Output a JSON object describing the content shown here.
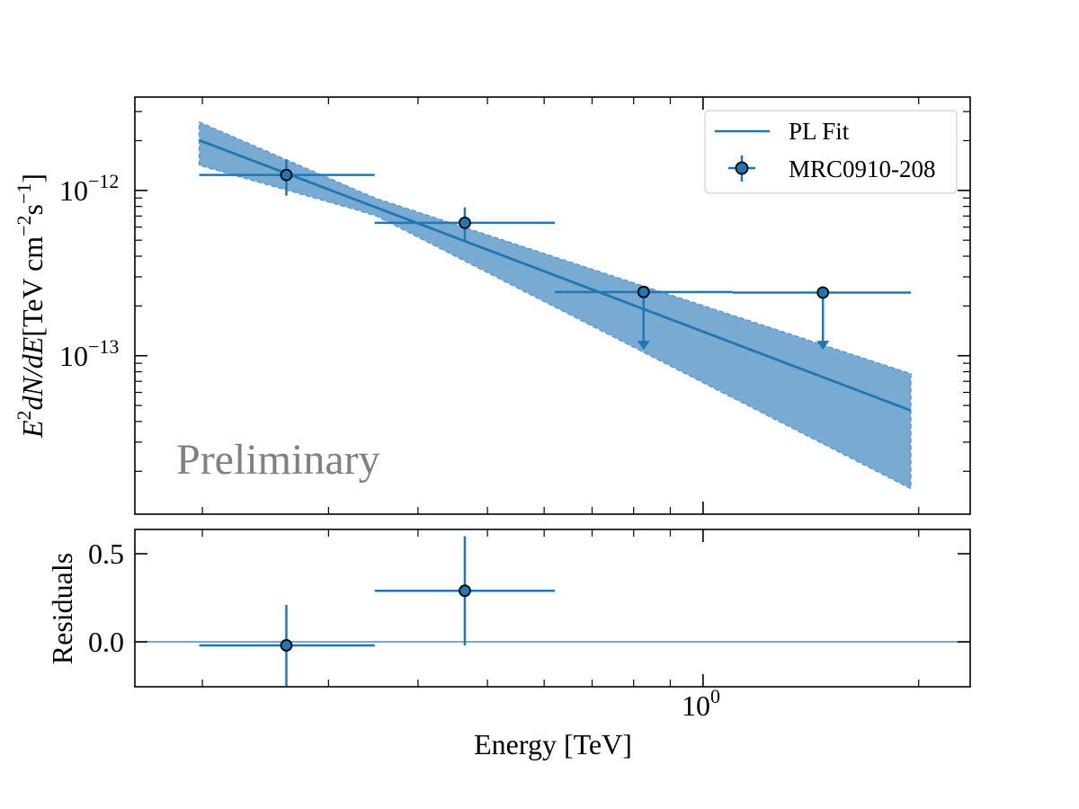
{
  "colors": {
    "series": "#1f77b4",
    "band": "#79abd2",
    "band_edge": "#5b9bd0",
    "watermark": "#808080",
    "axes": "#000000"
  },
  "chart_data": [
    {
      "type": "scatter",
      "panel": "spectrum",
      "title": "",
      "xlabel": "Energy [TeV]",
      "ylabel": "E^2 dN/dE [TeV cm^-2 s^-1]",
      "ylabel_parts": {
        "main": "E",
        "sup1": "2",
        "mid": "dN/dE [TeV cm",
        "sup2": "−2",
        "s": "s",
        "sup3": "−1",
        "end": "]"
      },
      "xscale": "log",
      "yscale": "log",
      "xlim": [
        0.161,
        2.36
      ],
      "ylim": [
        1.1e-14,
        3.67e-12
      ],
      "yticks": [
        {
          "value": 1e-12,
          "base": "10",
          "exp": "−12"
        },
        {
          "value": 1e-13,
          "base": "10",
          "exp": "−13"
        }
      ],
      "annotation": "Preliminary",
      "legend": {
        "position": "top-right",
        "entries": [
          {
            "label": "PL Fit",
            "kind": "line"
          },
          {
            "label": "MRC0910-208",
            "kind": "errorbar-marker"
          }
        ]
      },
      "fit_line": {
        "name": "PL Fit",
        "x": [
          0.198,
          1.95
        ],
        "y": [
          2.01e-12,
          4.66e-14
        ]
      },
      "fit_band": {
        "x": [
          0.198,
          0.348,
          1.95
        ],
        "upper": [
          2.59e-12,
          9e-13,
          7.78e-14
        ],
        "lower": [
          1.42e-12,
          7.1e-13,
          1.57e-14
        ]
      },
      "series": [
        {
          "name": "MRC0910-208",
          "points": [
            {
              "x": 0.262,
              "xlo": 0.198,
              "xhi": 0.348,
              "y": 1.24e-12,
              "ylo": 9.3e-13,
              "yhi": 1.54e-12,
              "ul": false
            },
            {
              "x": 0.465,
              "xlo": 0.348,
              "xhi": 0.621,
              "y": 6.37e-13,
              "ylo": 4.9e-13,
              "yhi": 7.9e-13,
              "ul": false
            },
            {
              "x": 0.826,
              "xlo": 0.621,
              "xhi": 1.1,
              "y": 2.43e-13,
              "ul": true,
              "arrow_to": 1.1e-13
            },
            {
              "x": 1.47,
              "xlo": 1.1,
              "xhi": 1.95,
              "y": 2.41e-13,
              "ul": true,
              "arrow_to": 1.1e-13
            }
          ]
        }
      ]
    },
    {
      "type": "scatter",
      "panel": "residuals",
      "xlabel": "Energy [TeV]",
      "ylabel": "Residuals",
      "xscale": "log",
      "xlim": [
        0.161,
        2.36
      ],
      "ylim": [
        -0.255,
        0.638
      ],
      "xticks": [
        {
          "value": 1,
          "base": "10",
          "exp": "0"
        }
      ],
      "yticks": [
        {
          "value": 0.5,
          "label": "0.5"
        },
        {
          "value": 0.0,
          "label": "0.0"
        }
      ],
      "reference_line": 0.0,
      "series": [
        {
          "name": "MRC0910-208",
          "points": [
            {
              "x": 0.262,
              "xlo": 0.198,
              "xhi": 0.348,
              "y": -0.02,
              "yerr": 0.23
            },
            {
              "x": 0.465,
              "xlo": 0.348,
              "xhi": 0.621,
              "y": 0.29,
              "yerr": 0.31
            }
          ]
        }
      ]
    }
  ]
}
